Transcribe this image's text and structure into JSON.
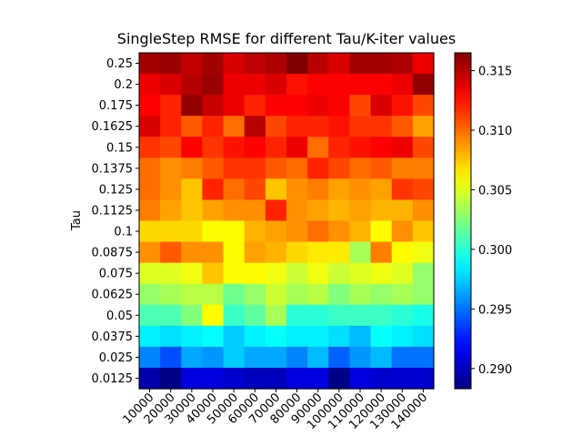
{
  "chart_data": {
    "type": "heatmap",
    "title": "SingleStep RMSE for different Tau/K-iter values",
    "xlabel": "",
    "ylabel": "Tau",
    "x_categories": [
      "10000",
      "20000",
      "30000",
      "40000",
      "50000",
      "60000",
      "70000",
      "80000",
      "90000",
      "100000",
      "110000",
      "120000",
      "130000",
      "140000"
    ],
    "y_categories": [
      "0.25",
      "0.2",
      "0.175",
      "0.1625",
      "0.15",
      "0.1375",
      "0.125",
      "0.1125",
      "0.1",
      "0.0875",
      "0.075",
      "0.0625",
      "0.05",
      "0.0375",
      "0.025",
      "0.0125"
    ],
    "values": [
      [
        0.3155,
        0.3158,
        0.3147,
        0.3155,
        0.314,
        0.3148,
        0.3152,
        0.3165,
        0.315,
        0.314,
        0.3155,
        0.3155,
        0.3152,
        0.3135
      ],
      [
        0.3135,
        0.314,
        0.315,
        0.3158,
        0.3135,
        0.3135,
        0.314,
        0.3125,
        0.313,
        0.313,
        0.313,
        0.313,
        0.3135,
        0.316
      ],
      [
        0.313,
        0.312,
        0.316,
        0.3145,
        0.3135,
        0.312,
        0.313,
        0.313,
        0.3135,
        0.313,
        0.311,
        0.314,
        0.3125,
        0.311
      ],
      [
        0.314,
        0.312,
        0.3105,
        0.312,
        0.31,
        0.315,
        0.311,
        0.312,
        0.312,
        0.3125,
        0.3115,
        0.3115,
        0.3105,
        0.3085
      ],
      [
        0.3115,
        0.311,
        0.313,
        0.3115,
        0.3125,
        0.313,
        0.312,
        0.3135,
        0.31,
        0.312,
        0.3125,
        0.313,
        0.3135,
        0.311
      ],
      [
        0.31,
        0.309,
        0.3095,
        0.3105,
        0.3115,
        0.3115,
        0.3105,
        0.31,
        0.312,
        0.311,
        0.31,
        0.3105,
        0.3095,
        0.3095
      ],
      [
        0.31,
        0.309,
        0.3075,
        0.312,
        0.31,
        0.311,
        0.3075,
        0.309,
        0.3095,
        0.3085,
        0.309,
        0.3085,
        0.3115,
        0.311
      ],
      [
        0.3095,
        0.3085,
        0.3075,
        0.3085,
        0.309,
        0.309,
        0.312,
        0.309,
        0.3085,
        0.308,
        0.3085,
        0.308,
        0.308,
        0.309
      ],
      [
        0.307,
        0.307,
        0.307,
        0.306,
        0.306,
        0.308,
        0.3085,
        0.309,
        0.31,
        0.309,
        0.308,
        0.306,
        0.309,
        0.3075
      ],
      [
        0.309,
        0.3105,
        0.309,
        0.309,
        0.306,
        0.3085,
        0.308,
        0.307,
        0.3065,
        0.3065,
        0.3035,
        0.3095,
        0.306,
        0.3055
      ],
      [
        0.305,
        0.305,
        0.3055,
        0.3075,
        0.306,
        0.306,
        0.3055,
        0.3045,
        0.3055,
        0.3045,
        0.305,
        0.3055,
        0.305,
        0.303
      ],
      [
        0.303,
        0.3035,
        0.304,
        0.304,
        0.302,
        0.303,
        0.3045,
        0.3035,
        0.304,
        0.3025,
        0.3035,
        0.303,
        0.3035,
        0.303
      ],
      [
        0.301,
        0.301,
        0.3025,
        0.306,
        0.3005,
        0.3015,
        0.3035,
        0.3,
        0.3,
        0.3005,
        0.3005,
        0.3005,
        0.3,
        0.2995
      ],
      [
        0.2985,
        0.298,
        0.2985,
        0.299,
        0.2975,
        0.2985,
        0.299,
        0.2985,
        0.2985,
        0.298,
        0.297,
        0.299,
        0.2985,
        0.298
      ],
      [
        0.2955,
        0.294,
        0.2965,
        0.296,
        0.2975,
        0.2965,
        0.2965,
        0.2955,
        0.297,
        0.2945,
        0.296,
        0.297,
        0.295,
        0.295
      ],
      [
        0.2895,
        0.2885,
        0.291,
        0.291,
        0.2905,
        0.29,
        0.29,
        0.291,
        0.291,
        0.2885,
        0.291,
        0.2905,
        0.2905,
        0.2905
      ]
    ],
    "colormap": "jet",
    "vmin": 0.2883,
    "vmax": 0.3165,
    "colorbar_ticks": [
      "0.290",
      "0.295",
      "0.300",
      "0.305",
      "0.310",
      "0.315"
    ],
    "colorbar_tick_values": [
      0.29,
      0.295,
      0.3,
      0.305,
      0.31,
      0.315
    ],
    "grid": false,
    "x_tick_rotation": "45-degrees"
  }
}
